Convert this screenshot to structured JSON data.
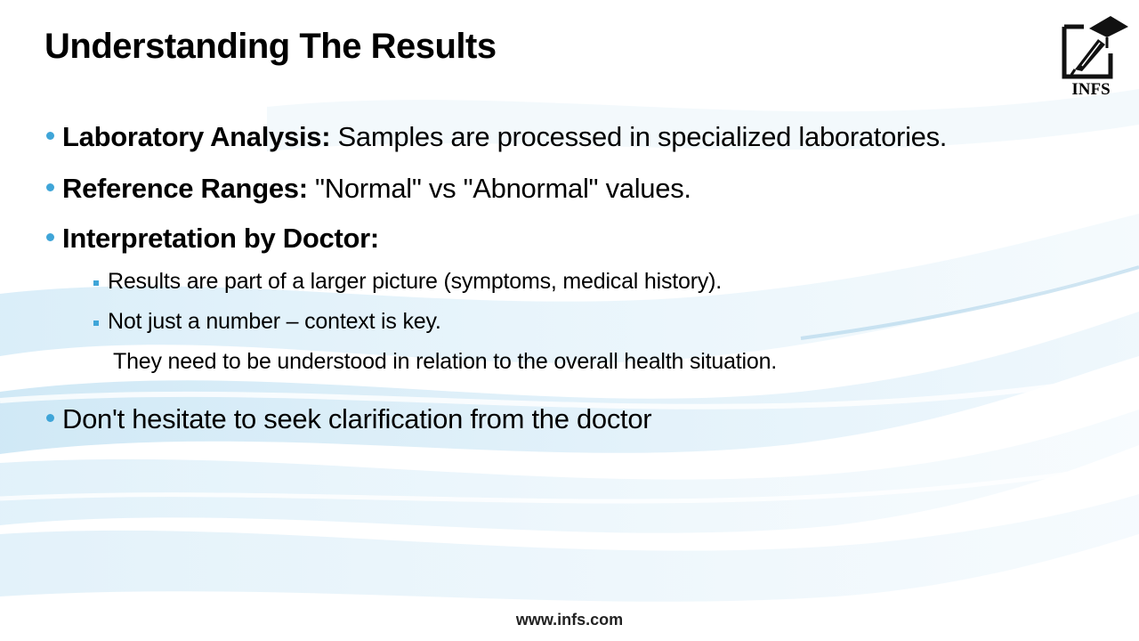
{
  "slide": {
    "title": "Understanding The Results",
    "logo_text": "INFS",
    "bullets": [
      {
        "bold": "Laboratory Analysis:",
        "text": " Samples are processed in specialized laboratories."
      },
      {
        "bold": "Reference Ranges:",
        "text": " \"Normal\" vs \"Abnormal\" values."
      },
      {
        "bold": "Interpretation by Doctor:",
        "text": ""
      },
      {
        "text": "Don't hesitate to seek clarification from the doctor"
      }
    ],
    "sub_bullets": [
      "Results are part of a larger picture (symptoms, medical history).",
      "Not just a number – context is key."
    ],
    "sub_continuation": "They need to be understood in relation to the overall health situation.",
    "footer": "www.infs.com"
  },
  "colors": {
    "bullet_accent": "#3fa5d8",
    "wave_light": "#e3f1fa",
    "wave_mid": "#c6e3f4"
  },
  "icons": [
    "graduation-cap-pen-logo"
  ]
}
